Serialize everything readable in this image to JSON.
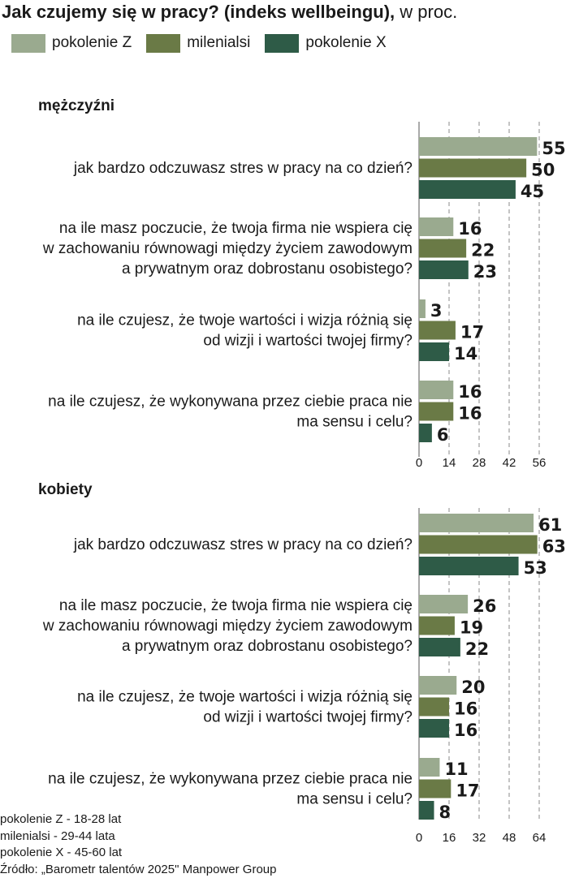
{
  "title_bold": "Jak czujemy się w pracy? (indeks wellbeingu),",
  "title_rest": " w proc.",
  "legend": [
    {
      "label": "pokolenie Z",
      "color": "#9aaa8f"
    },
    {
      "label": "milenialsi",
      "color": "#6a7a46"
    },
    {
      "label": "pokolenie X",
      "color": "#2e5b47"
    }
  ],
  "chart_data": [
    {
      "type": "bar",
      "orientation": "horizontal",
      "title": "mężczyźni",
      "xlim": [
        0,
        56
      ],
      "xticks": [
        0,
        14,
        28,
        42,
        56
      ],
      "grid": true,
      "series_names": [
        "pokolenie Z",
        "milenialsi",
        "pokolenie X"
      ],
      "groups": [
        {
          "label": [
            "jak bardzo odczuwasz stres w pracy na co dzień?"
          ],
          "values": [
            55,
            50,
            45
          ]
        },
        {
          "label": [
            "na ile masz poczucie, że twoja firma nie wspiera cię",
            "w zachowaniu równowagi między życiem zawodowym",
            "a prywatnym oraz dobrostanu osobistego?"
          ],
          "values": [
            16,
            22,
            23
          ]
        },
        {
          "label": [
            "na ile czujesz, że twoje wartości i wizja różnią się",
            "od wizji i wartości twojej firmy?"
          ],
          "values": [
            3,
            17,
            14
          ]
        },
        {
          "label": [
            "na ile czujesz, że wykonywana przez ciebie praca nie",
            "ma sensu i celu?"
          ],
          "values": [
            16,
            16,
            6
          ]
        }
      ]
    },
    {
      "type": "bar",
      "orientation": "horizontal",
      "title": "kobiety",
      "xlim": [
        0,
        64
      ],
      "xticks": [
        0,
        16,
        32,
        48,
        64
      ],
      "grid": true,
      "series_names": [
        "pokolenie Z",
        "milenialsi",
        "pokolenie X"
      ],
      "groups": [
        {
          "label": [
            "jak bardzo odczuwasz stres w pracy na co dzień?"
          ],
          "values": [
            61,
            63,
            53
          ]
        },
        {
          "label": [
            "na ile masz poczucie, że twoja firma nie wspiera cię",
            "w zachowaniu równowagi między życiem zawodowym",
            "a prywatnym oraz dobrostanu osobistego?"
          ],
          "values": [
            26,
            19,
            22
          ]
        },
        {
          "label": [
            "na ile czujesz, że twoje wartości i wizja różnią się",
            "od wizji i wartości twojej firmy?"
          ],
          "values": [
            20,
            16,
            16
          ]
        },
        {
          "label": [
            "na ile czujesz, że wykonywana przez ciebie praca nie",
            "ma sensu i celu?"
          ],
          "values": [
            11,
            17,
            8
          ]
        }
      ]
    }
  ],
  "footnotes": [
    "pokolenie Z - 18-28 lat",
    "milenialsi - 29-44 lata",
    "pokolenie X - 45-60 lat",
    "Źródło: „Barometr talentów 2025\" Manpower Group"
  ]
}
